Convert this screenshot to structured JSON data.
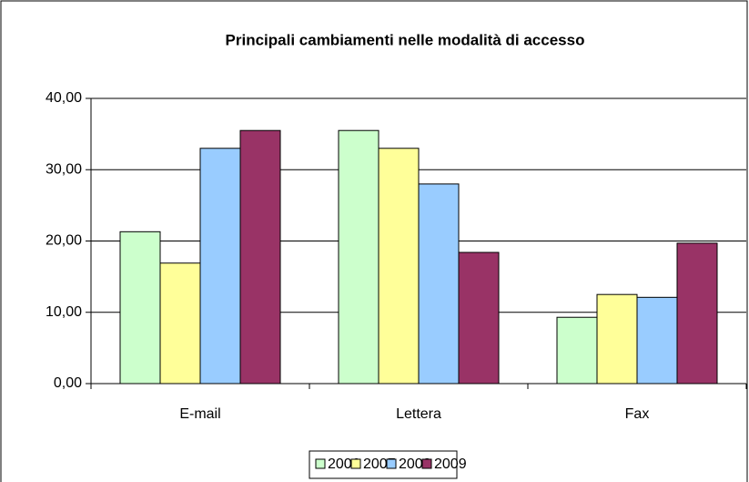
{
  "chart_data": {
    "type": "bar",
    "title": "Principali cambiamenti nelle modalità di accesso",
    "categories": [
      "E-mail",
      "Lettera",
      "Fax"
    ],
    "series": [
      {
        "name": "2006",
        "color": "#ccffcc",
        "values": [
          21.3,
          35.5,
          9.3
        ]
      },
      {
        "name": "2007",
        "color": "#ffff99",
        "values": [
          16.9,
          33.0,
          12.5
        ]
      },
      {
        "name": "2008",
        "color": "#99ccff",
        "values": [
          33.0,
          28.0,
          12.1
        ]
      },
      {
        "name": "2009",
        "color": "#993366",
        "values": [
          35.5,
          18.4,
          19.7
        ]
      }
    ],
    "ylim": [
      0,
      40
    ],
    "yticks": [
      {
        "value": 0,
        "label": "0,00"
      },
      {
        "value": 10,
        "label": "10,00"
      },
      {
        "value": 20,
        "label": "20,00"
      },
      {
        "value": 30,
        "label": "30,00"
      },
      {
        "value": 40,
        "label": "40,00"
      }
    ],
    "grid": true,
    "legend": "bottom"
  }
}
